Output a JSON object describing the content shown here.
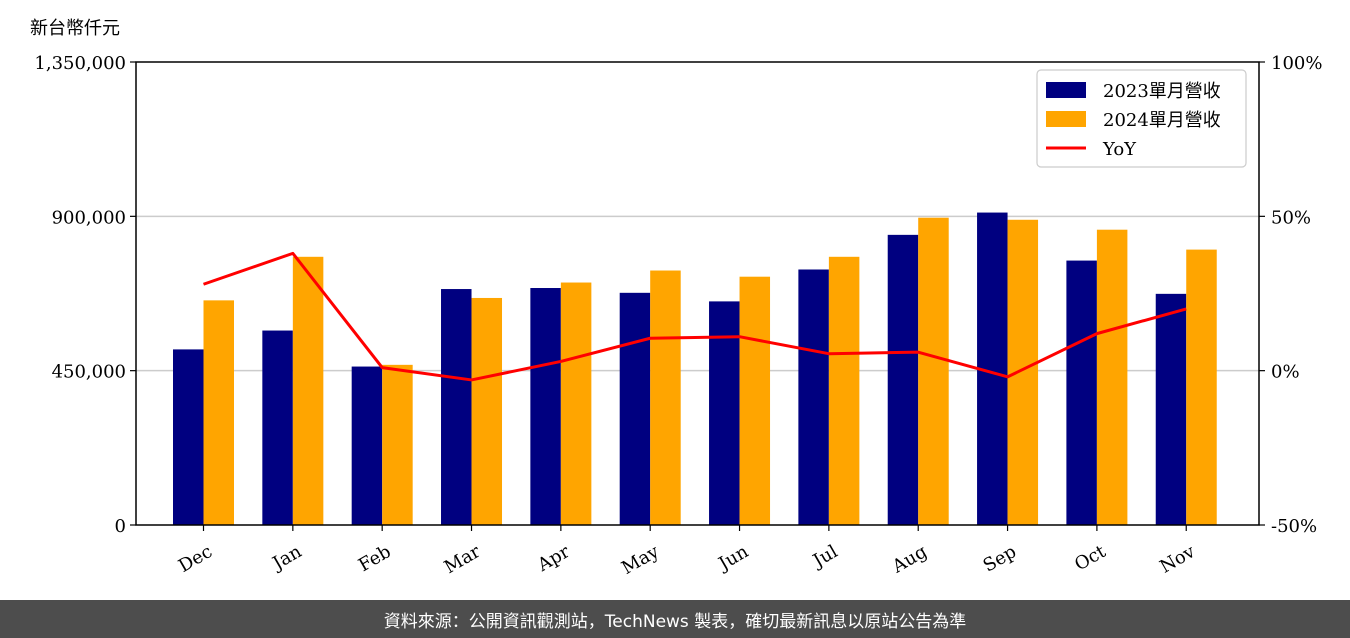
{
  "chart_data": {
    "type": "bar",
    "y_unit_label": "新台幣仟元",
    "categories": [
      "Dec",
      "Jan",
      "Feb",
      "Mar",
      "Apr",
      "May",
      "Jun",
      "Jul",
      "Aug",
      "Sep",
      "Oct",
      "Nov"
    ],
    "series": [
      {
        "name": "2023單月營收",
        "type": "bar",
        "axis": "left",
        "color": "#000080",
        "values": [
          512000,
          567000,
          462000,
          688000,
          691000,
          677000,
          652000,
          745000,
          846000,
          911000,
          771000,
          674000
        ]
      },
      {
        "name": "2024單月營收",
        "type": "bar",
        "axis": "left",
        "color": "#FFA500",
        "values": [
          655000,
          782000,
          467000,
          662000,
          707000,
          742000,
          724000,
          782000,
          896000,
          890000,
          861000,
          803000
        ]
      },
      {
        "name": "YoY",
        "type": "line",
        "axis": "right",
        "color": "#FF0000",
        "values": [
          28.0,
          38.0,
          1.0,
          -3.0,
          3.0,
          10.5,
          11.0,
          5.5,
          6.0,
          -2.0,
          12.0,
          20.0
        ]
      }
    ],
    "y_left": {
      "min": 0,
      "max": 1350000,
      "ticks": [
        "0",
        "450,000",
        "900,000",
        "1,350,000"
      ],
      "tick_values": [
        0,
        450000,
        900000,
        1350000
      ]
    },
    "y_right": {
      "min": -50,
      "max": 100,
      "ticks": [
        "-50%",
        "0%",
        "50%",
        "100%"
      ],
      "tick_values": [
        -50,
        0,
        50,
        100
      ]
    },
    "grid": "horizontal",
    "legend": "top-right",
    "watermark": "TechNews"
  },
  "footer": {
    "text": "資料來源：公開資訊觀測站，TechNews 製表，確切最新訊息以原站公告為準"
  }
}
